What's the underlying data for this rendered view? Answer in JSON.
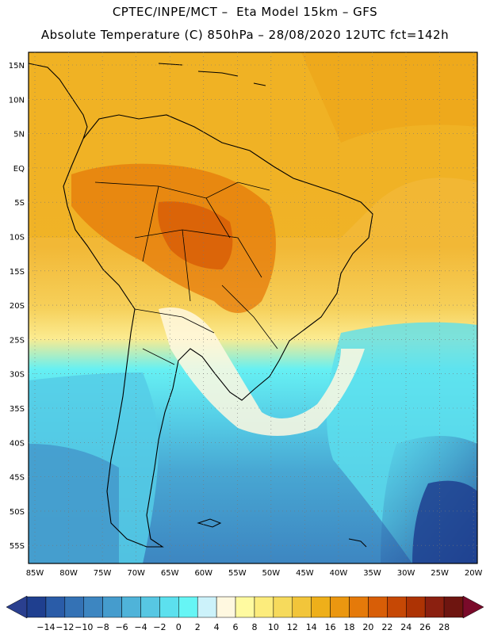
{
  "header": {
    "line1": "CPTEC/INPE/MCT –  Eta Model 15km – GFS",
    "line2": "Absolute Temperature (C) 850hPa – 28/08/2020 12UTC fct=142h"
  },
  "axes": {
    "lat_labels": [
      "15N",
      "10N",
      "5N",
      "EQ",
      "5S",
      "10S",
      "15S",
      "20S",
      "25S",
      "30S",
      "35S",
      "40S",
      "45S",
      "50S",
      "55S"
    ],
    "lon_labels": [
      "85W",
      "80W",
      "75W",
      "70W",
      "65W",
      "60W",
      "55W",
      "50W",
      "45W",
      "40W",
      "35W",
      "30W",
      "25W",
      "20W"
    ]
  },
  "colorbar": {
    "labels": [
      "-14",
      "-12",
      "-10",
      "-8",
      "-6",
      "-4",
      "-2",
      "0",
      "2",
      "4",
      "6",
      "8",
      "10",
      "12",
      "14",
      "16",
      "18",
      "20",
      "22",
      "24",
      "26",
      "28"
    ],
    "colors": [
      "#1f3f8f",
      "#2a5ca8",
      "#3472b5",
      "#3d86c1",
      "#459ccd",
      "#4fb3d9",
      "#57c7e3",
      "#5ce0ee",
      "#66f5f5",
      "#ccf2fa",
      "#fff8e0",
      "#fffaa0",
      "#fcec7c",
      "#f6da5c",
      "#f2c53a",
      "#eeaf1a",
      "#eb9710",
      "#e57a0a",
      "#d85e07",
      "#c64805",
      "#ad3304",
      "#8b2010",
      "#6e1510"
    ]
  },
  "colors": {
    "background": "#ffffff",
    "border": "#000000",
    "grid": "#777777"
  }
}
